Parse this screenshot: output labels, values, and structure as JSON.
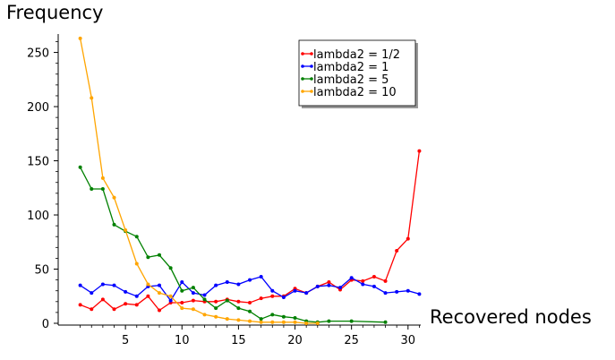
{
  "chart_data": {
    "type": "line",
    "xlabel": "Recovered nodes",
    "ylabel": "Frequency",
    "xlim": [
      0,
      31.6
    ],
    "ylim": [
      0,
      267
    ],
    "xticks": [
      5,
      10,
      15,
      20,
      25,
      30
    ],
    "yticks": [
      0,
      50,
      100,
      150,
      200,
      250
    ],
    "legend_position": "top-right",
    "grid": false,
    "series": [
      {
        "name": "lambda2 = 1/2",
        "color": "#ff0000",
        "x": [
          1,
          2,
          3,
          4,
          5,
          6,
          7,
          8,
          9,
          10,
          11,
          12,
          13,
          14,
          15,
          16,
          17,
          18,
          19,
          20,
          21,
          22,
          23,
          24,
          25,
          26,
          27,
          28,
          29,
          30,
          31
        ],
        "y": [
          17,
          13,
          22,
          13,
          18,
          17,
          25,
          12,
          19,
          19,
          21,
          20,
          20,
          22,
          20,
          19,
          23,
          25,
          25,
          32,
          28,
          34,
          38,
          31,
          40,
          39,
          43,
          39,
          67,
          78,
          159
        ]
      },
      {
        "name": "lambda2 = 1",
        "color": "#0000ff",
        "x": [
          1,
          2,
          3,
          4,
          5,
          6,
          7,
          8,
          9,
          10,
          11,
          12,
          13,
          14,
          15,
          16,
          17,
          18,
          19,
          20,
          21,
          22,
          23,
          24,
          25,
          26,
          27,
          28,
          29,
          30,
          31
        ],
        "y": [
          35,
          28,
          36,
          35,
          29,
          25,
          34,
          35,
          21,
          38,
          28,
          26,
          35,
          38,
          36,
          40,
          43,
          30,
          24,
          30,
          28,
          34,
          35,
          33,
          42,
          36,
          34,
          28,
          29,
          30,
          27
        ]
      },
      {
        "name": "lambda2 = 5",
        "color": "#008000",
        "x": [
          1,
          2,
          3,
          4,
          5,
          6,
          7,
          8,
          9,
          10,
          11,
          12,
          13,
          14,
          15,
          16,
          17,
          18,
          19,
          20,
          21,
          22,
          23,
          25,
          28
        ],
        "y": [
          144,
          124,
          124,
          91,
          85,
          80,
          61,
          63,
          51,
          30,
          33,
          22,
          14,
          21,
          14,
          11,
          4,
          8,
          6,
          5,
          2,
          1,
          2,
          2,
          1
        ]
      },
      {
        "name": "lambda2 = 10",
        "color": "#ffa500",
        "x": [
          1,
          2,
          3,
          4,
          5,
          6,
          7,
          8,
          9,
          10,
          11,
          12,
          13,
          14,
          15,
          16,
          17,
          18,
          19,
          20,
          21,
          22
        ],
        "y": [
          263,
          208,
          134,
          116,
          86,
          55,
          36,
          28,
          25,
          14,
          13,
          8,
          6,
          4,
          3,
          2,
          1,
          1,
          1,
          1,
          0,
          0
        ]
      }
    ]
  }
}
